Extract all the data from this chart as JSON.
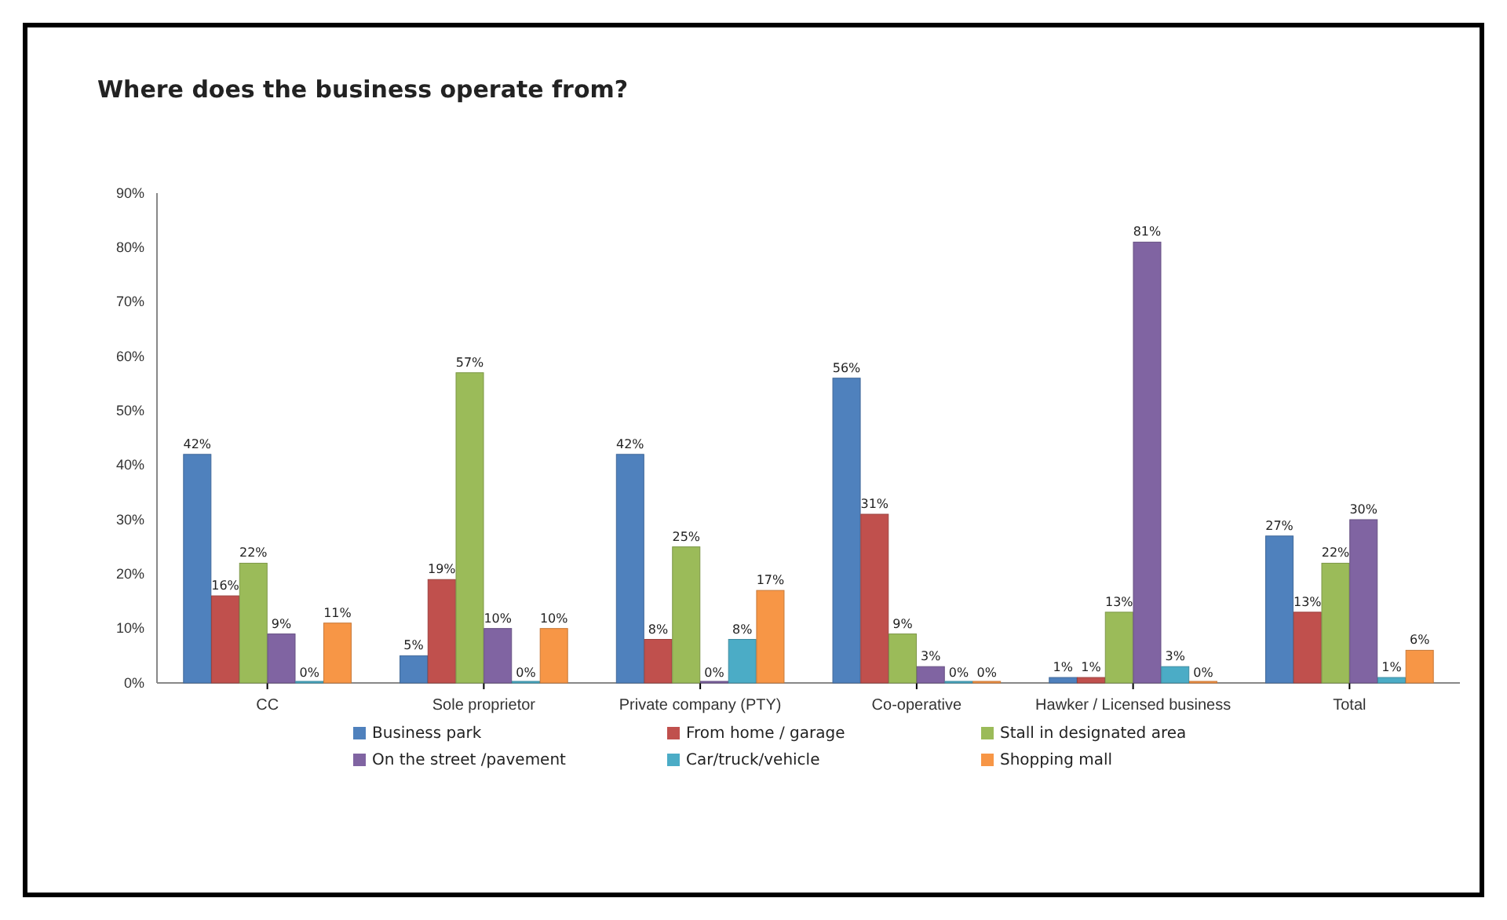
{
  "chart_data": {
    "type": "bar",
    "title": "Where does the business  operate from?",
    "categories": [
      "CC",
      "Sole proprietor",
      "Private company (PTY)",
      "Co-operative",
      "Hawker / Licensed business",
      "Total"
    ],
    "series": [
      {
        "name": "Business park",
        "color": "#4f81bd",
        "values": [
          42,
          5,
          42,
          56,
          1,
          27
        ],
        "value_labels": [
          "42%",
          "5%",
          "42%",
          "56%",
          "1%",
          "27%"
        ]
      },
      {
        "name": "From home / garage",
        "color": "#c0504d",
        "values": [
          16,
          19,
          8,
          31,
          1,
          13
        ],
        "value_labels": [
          "16%",
          "19%",
          "8%",
          "31%",
          "1%",
          "13%"
        ]
      },
      {
        "name": "Stall in designated area",
        "color": "#9bbb59",
        "values": [
          22,
          57,
          25,
          9,
          13,
          22
        ],
        "value_labels": [
          "22%",
          "57%",
          "25%",
          "9%",
          "13%",
          "22%"
        ]
      },
      {
        "name": "On the street /pavement",
        "color": "#8064a2",
        "values": [
          9,
          10,
          0,
          3,
          81,
          30
        ],
        "value_labels": [
          "9%",
          "10%",
          "0%",
          "3%",
          "81%",
          "30%"
        ]
      },
      {
        "name": "Car/truck/vehicle",
        "color": "#4bacc6",
        "values": [
          0,
          0,
          8,
          0,
          3,
          1
        ],
        "value_labels": [
          "0%",
          "0%",
          "8%",
          "0%",
          "3%",
          "1%"
        ]
      },
      {
        "name": "Shopping mall",
        "color": "#f79646",
        "values": [
          11,
          10,
          17,
          0,
          0,
          6
        ],
        "value_labels": [
          "11%",
          "10%",
          "17%",
          "0%",
          "0%",
          "6%"
        ]
      }
    ],
    "ylim": [
      0,
      90
    ],
    "yticks": [
      {
        "value": 0,
        "label": "0%"
      },
      {
        "value": 10,
        "label": "10%"
      },
      {
        "value": 20,
        "label": "20%"
      },
      {
        "value": 30,
        "label": "30%"
      },
      {
        "value": 40,
        "label": "40%"
      },
      {
        "value": 50,
        "label": "50%"
      },
      {
        "value": 60,
        "label": "60%"
      },
      {
        "value": 70,
        "label": "70%"
      },
      {
        "value": 80,
        "label": "80%"
      },
      {
        "value": 90,
        "label": "90%"
      }
    ],
    "grid": false,
    "legend": "bottom"
  }
}
